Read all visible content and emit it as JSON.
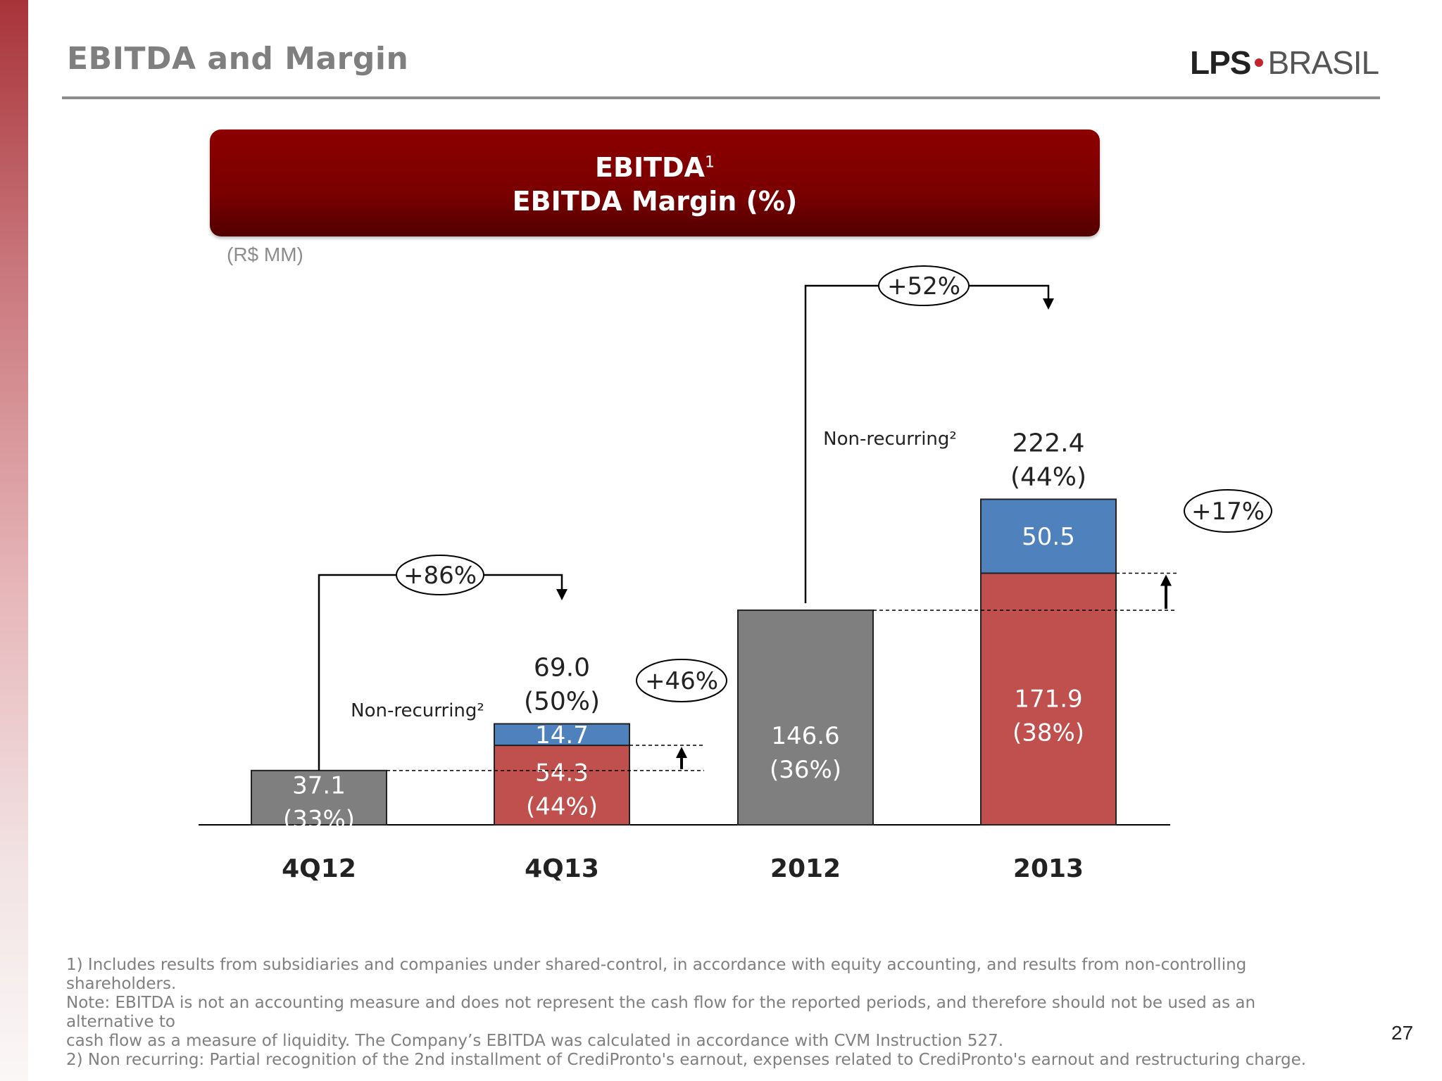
{
  "header": {
    "title": "EBITDA and Margin",
    "logo_left": "LPS",
    "logo_right": "BRASIL"
  },
  "banner": {
    "line1": "EBITDA",
    "line1_sup": "1",
    "line2": "EBITDA Margin (%)"
  },
  "unit_label": "(R$ MM)",
  "colors": {
    "grey_bar": "#7f7f7f",
    "red_bar": "#c0504d",
    "blue_bar": "#4f81bd",
    "banner": "#7a0000"
  },
  "chart_data": {
    "type": "bar",
    "stacked": true,
    "categories": [
      "4Q12",
      "4Q13",
      "2012",
      "2013"
    ],
    "bars": [
      {
        "category": "4Q12",
        "base": 37.1,
        "base_label": "37.1",
        "base_margin": "(33%)",
        "base_color": "grey"
      },
      {
        "category": "4Q13",
        "base": 54.3,
        "base_label": "54.3",
        "base_margin": "(44%)",
        "base_color": "red",
        "non_recurring": 14.7,
        "non_recurring_label": "14.7",
        "total_label": "69.0",
        "total_margin": "(50%)"
      },
      {
        "category": "2012",
        "base": 146.6,
        "base_label": "146.6",
        "base_margin": "(36%)",
        "base_color": "grey"
      },
      {
        "category": "2013",
        "base": 171.9,
        "base_label": "171.9",
        "base_margin": "(38%)",
        "base_color": "red",
        "non_recurring": 50.5,
        "non_recurring_label": "50.5",
        "total_label": "222.4",
        "total_margin": "(44%)"
      }
    ],
    "non_recurring_label": "Non-recurring²",
    "growth_annotations": [
      {
        "text": "+86%",
        "from": "4Q12",
        "to": "4Q13",
        "kind": "total"
      },
      {
        "text": "+46%",
        "from": "4Q12",
        "to": "4Q13",
        "kind": "recurring"
      },
      {
        "text": "+52%",
        "from": "2012",
        "to": "2013",
        "kind": "total"
      },
      {
        "text": "+17%",
        "from": "2012",
        "to": "2013",
        "kind": "recurring"
      }
    ],
    "ylim": [
      0,
      222.4
    ]
  },
  "footnotes": {
    "line1": "1) Includes results from subsidiaries and companies under shared-control, in accordance with equity accounting, and results from non-controlling shareholders.",
    "line2": "Note: EBITDA is not an accounting measure and does not represent the cash flow for the reported periods, and therefore should not be used as an alternative to",
    "line3": "cash flow as a measure of liquidity. The Company’s EBITDA was calculated in accordance with CVM Instruction 527.",
    "line4": "2) Non recurring: Partial recognition of the 2nd installment of CrediPronto's earnout, expenses related to CrediPronto's earnout and restructuring charge."
  },
  "page_number": "27"
}
